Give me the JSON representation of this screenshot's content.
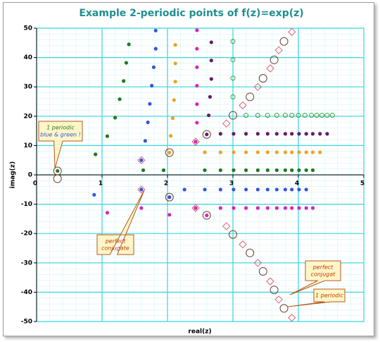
{
  "chart_data": {
    "type": "scatter",
    "title": "Example 2-periodic points of f(z)=exp(z)",
    "x_label": "real(z)",
    "y_label": "imag(z)",
    "xlim": [
      0,
      5
    ],
    "ylim": [
      -50,
      50
    ],
    "xticks": [
      0,
      1,
      2,
      3,
      4,
      5
    ],
    "yticks": [
      -50,
      -40,
      -30,
      -20,
      -10,
      0,
      10,
      20,
      30,
      40,
      50
    ],
    "grid": true,
    "grid_color": "#33d6e0",
    "series": [
      {
        "color": "#1e7a1e",
        "marker": "dot",
        "x": [
          0.32,
          0.9,
          1.08,
          1.2,
          1.27,
          1.33,
          1.37,
          1.41,
          1.63,
          1.94,
          2.57,
          2.81,
          3.01,
          3.2,
          3.38,
          3.53,
          3.67,
          3.8,
          3.9,
          4.01,
          4.12,
          4.22
        ],
        "values": [
          1.34,
          7,
          13.2,
          19.5,
          25.8,
          32,
          38.2,
          44.5,
          1.6,
          1.6,
          1.6,
          1.6,
          1.6,
          1.6,
          1.6,
          1.6,
          1.6,
          1.6,
          1.6,
          1.6,
          1.6,
          1.6
        ]
      },
      {
        "color": "#3355dd",
        "marker": "dot",
        "x": [
          1.82,
          1.82,
          1.79,
          1.76,
          1.73,
          1.7,
          1.66,
          1.6,
          0.88,
          1.6,
          2.03,
          2.26,
          2.57,
          2.81,
          3.01,
          3.2,
          3.38,
          3.53,
          3.67,
          3.8,
          3.9,
          4.01,
          4.12
        ],
        "values": [
          49.2,
          43,
          36.7,
          30.4,
          24.2,
          17.9,
          11.6,
          5,
          -6.8,
          -5,
          -7.6,
          -5,
          -5,
          -5,
          -5,
          -5,
          -5,
          -5,
          -5,
          -5,
          -5,
          -5,
          -5
        ]
      },
      {
        "color": "#f0a020",
        "marker": "dot",
        "x": [
          2.12,
          2.12,
          2.12,
          2.1,
          2.08,
          2.05,
          2.03,
          2.57,
          2.81,
          3.01,
          3.2,
          3.38,
          3.53,
          3.67,
          3.8,
          3.9,
          4.01,
          4.12,
          4.22,
          4.33
        ],
        "values": [
          44.3,
          38,
          31.8,
          25.5,
          19.3,
          13.3,
          7.6,
          7.7,
          7.7,
          7.7,
          7.7,
          7.7,
          7.7,
          7.7,
          7.7,
          7.7,
          7.7,
          7.7,
          7.7,
          7.7
        ]
      },
      {
        "color": "#e020c0",
        "marker": "dot",
        "x": [
          2.45,
          2.45,
          2.45,
          2.45,
          2.45,
          2.45,
          2.43,
          1.08,
          1.6,
          2.03,
          2.43,
          2.6,
          2.81,
          3.01,
          3.2,
          3.38,
          3.53,
          3.67,
          3.8,
          3.9,
          4.01,
          4.12,
          4.22
        ],
        "values": [
          49.3,
          43,
          36.7,
          30.4,
          24.1,
          17.8,
          11.3,
          -12.9,
          -11.3,
          -13.6,
          -11.3,
          -13.8,
          -11.3,
          -11.3,
          -11.3,
          -11.3,
          -11.3,
          -11.3,
          -11.3,
          -11.3,
          -11.3,
          -11.3,
          -11.3
        ]
      },
      {
        "color": "#6a1a6a",
        "marker": "dot",
        "x": [
          2.67,
          2.67,
          2.67,
          2.65,
          2.63,
          2.6,
          2.81,
          3.01,
          3.2,
          3.38,
          3.53,
          3.67,
          3.8,
          3.9,
          4.01,
          4.12,
          4.22,
          4.33,
          4.44
        ],
        "values": [
          45.2,
          39,
          32.7,
          26.6,
          20.3,
          13.8,
          14,
          14,
          14,
          14,
          14,
          14,
          14,
          14,
          14,
          14,
          14,
          14,
          14
        ]
      },
      {
        "color": "#3aa03a",
        "marker": "ring",
        "x": [
          3.0,
          3.0,
          3.0,
          3.0,
          3.2,
          3.38,
          3.53,
          3.67,
          3.8,
          3.9,
          4.0,
          4.1,
          4.2,
          4.28,
          4.36,
          4.44,
          4.52
        ],
        "values": [
          45.5,
          39.2,
          33,
          26.6,
          20.3,
          20.3,
          20.3,
          20.3,
          20.3,
          20.3,
          20.3,
          20.3,
          20.3,
          20.3,
          20.3,
          20.3,
          20.3
        ]
      },
      {
        "color": "#704030",
        "marker": "circle",
        "x": [
          0.32,
          0.32,
          2.03,
          2.03,
          2.6,
          2.6,
          3.0,
          3.0,
          3.26,
          3.26,
          3.46,
          3.46,
          3.63,
          3.63,
          3.78,
          3.78
        ],
        "values": [
          1.34,
          -1.3,
          7.6,
          -7.6,
          13.8,
          -13.8,
          20.3,
          -20.3,
          26.6,
          -26.6,
          32.9,
          -32.9,
          39.2,
          -39.2,
          45.5,
          -45.5
        ]
      },
      {
        "color": "#e06070",
        "marker": "diamond",
        "x": [
          1.6,
          1.6,
          2.43,
          2.43,
          2.9,
          2.9,
          3.15,
          3.15,
          3.38,
          3.38,
          3.57,
          3.57,
          3.7,
          3.7,
          3.9,
          3.9
        ],
        "values": [
          5,
          -5,
          11.3,
          -11.3,
          17.5,
          -17.5,
          23.7,
          -23.7,
          30,
          -30,
          36.3,
          -36.3,
          42.5,
          -42.5,
          48.7,
          -48.7
        ]
      }
    ],
    "annotations": [
      {
        "lines": [
          "1 periodic",
          "blue & green !"
        ]
      },
      {
        "lines": [
          "perfect",
          "conjugate"
        ]
      },
      {
        "lines": [
          "perfect",
          "conjugat"
        ]
      },
      {
        "lines": [
          "1 periodic"
        ]
      }
    ]
  }
}
